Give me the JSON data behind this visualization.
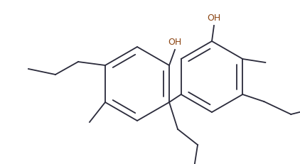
{
  "bg_color": "#ffffff",
  "line_color": "#2a2a3a",
  "oh_color": "#8B4513",
  "line_width": 1.3,
  "dbo": 0.012,
  "oh_fontsize": 9,
  "fig_width": 4.22,
  "fig_height": 2.31,
  "dpi": 100
}
